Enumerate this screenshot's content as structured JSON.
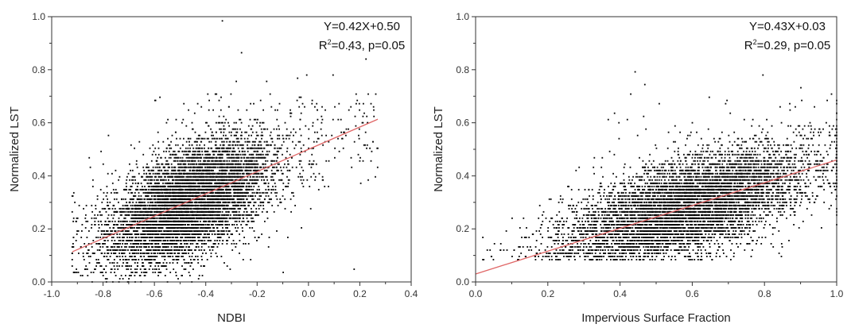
{
  "colors": {
    "points": "#000000",
    "fit_line": "#e06666",
    "axes": "#333333"
  },
  "chart_data": [
    {
      "type": "scatter",
      "xlabel": "NDBI",
      "ylabel": "Normalized LST",
      "xlim": [
        -1.0,
        0.4
      ],
      "ylim": [
        0.0,
        1.0
      ],
      "xticks": [
        -1.0,
        -0.8,
        -0.6,
        -0.4,
        -0.2,
        0.0,
        0.2,
        0.4
      ],
      "xtick_labels": [
        "-1.0",
        "-0.8",
        "-0.6",
        "-0.4",
        "-0.2",
        "0.0",
        "0.2",
        "0.4"
      ],
      "yticks": [
        0.0,
        0.2,
        0.4,
        0.6,
        0.8,
        1.0
      ],
      "ytick_labels": [
        "0.0",
        "0.2",
        "0.4",
        "0.6",
        "0.8",
        "1.0"
      ],
      "equation": "Y=0.42X+0.50",
      "r2_prefix": "R",
      "r2_sup": "2",
      "r2_rest": "=0.43, p=0.05",
      "fit": {
        "slope": 0.42,
        "intercept": 0.5,
        "x_range": [
          -0.92,
          0.27
        ]
      },
      "points_summary": {
        "count": 7000,
        "x_mean": -0.46,
        "x_sd": 0.16,
        "x_min": -0.92,
        "x_max": 0.27,
        "y_min": 0.0,
        "y_max": 1.0,
        "y_sd": 0.1,
        "y_step": 0.012
      },
      "grid": false,
      "legend": "none"
    },
    {
      "type": "scatter",
      "xlabel": "Impervious Surface Fraction",
      "ylabel": "Normalized LST",
      "xlim": [
        0.0,
        1.0
      ],
      "ylim": [
        0.0,
        1.0
      ],
      "xticks": [
        0.0,
        0.2,
        0.4,
        0.6,
        0.8,
        1.0
      ],
      "xtick_labels": [
        "0.0",
        "0.2",
        "0.4",
        "0.6",
        "0.8",
        "1.0"
      ],
      "yticks": [
        0.0,
        0.2,
        0.4,
        0.6,
        0.8,
        1.0
      ],
      "ytick_labels": [
        "0.0",
        "0.2",
        "0.4",
        "0.6",
        "0.8",
        "1.0"
      ],
      "equation": "Y=0.43X+0.03",
      "r2_prefix": "R",
      "r2_sup": "2",
      "r2_rest": "=0.29, p=0.05",
      "fit": {
        "slope": 0.43,
        "intercept": 0.03,
        "x_range": [
          0.0,
          1.0
        ]
      },
      "points_summary": {
        "count": 7000,
        "x_mean": 0.58,
        "x_sd": 0.17,
        "x_min": 0.02,
        "x_max": 1.0,
        "y_min": 0.08,
        "y_max": 0.85,
        "y_sd": 0.09,
        "y_step": 0.012
      },
      "grid": false,
      "legend": "none"
    }
  ]
}
